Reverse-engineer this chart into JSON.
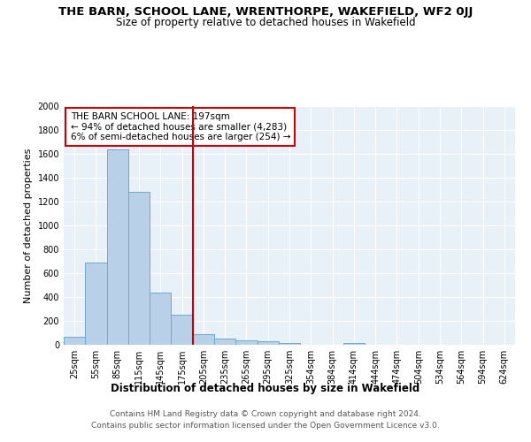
{
  "title": "THE BARN, SCHOOL LANE, WRENTHORPE, WAKEFIELD, WF2 0JJ",
  "subtitle": "Size of property relative to detached houses in Wakefield",
  "xlabel": "Distribution of detached houses by size in Wakefield",
  "ylabel": "Number of detached properties",
  "categories": [
    "25sqm",
    "55sqm",
    "85sqm",
    "115sqm",
    "145sqm",
    "175sqm",
    "205sqm",
    "235sqm",
    "265sqm",
    "295sqm",
    "325sqm",
    "354sqm",
    "384sqm",
    "414sqm",
    "444sqm",
    "474sqm",
    "504sqm",
    "534sqm",
    "564sqm",
    "594sqm",
    "624sqm"
  ],
  "values": [
    65,
    690,
    1635,
    1285,
    435,
    255,
    88,
    52,
    38,
    28,
    18,
    0,
    0,
    18,
    0,
    0,
    0,
    0,
    0,
    0,
    0
  ],
  "bar_color": "#b8d0e8",
  "bar_edge_color": "#6aaad4",
  "vline_color": "#cc0000",
  "vline_x_index": 5,
  "annotation_text": "THE BARN SCHOOL LANE: 197sqm\n← 94% of detached houses are smaller (4,283)\n6% of semi-detached houses are larger (254) →",
  "annotation_box_color": "#cc0000",
  "ylim": [
    0,
    2000
  ],
  "yticks": [
    0,
    200,
    400,
    600,
    800,
    1000,
    1200,
    1400,
    1600,
    1800,
    2000
  ],
  "footer_line1": "Contains HM Land Registry data © Crown copyright and database right 2024.",
  "footer_line2": "Contains public sector information licensed under the Open Government Licence v3.0.",
  "plot_bg_color": "#e8f0f8",
  "title_fontsize": 9.5,
  "subtitle_fontsize": 8.5,
  "xlabel_fontsize": 8.5,
  "ylabel_fontsize": 8,
  "tick_fontsize": 7,
  "annotation_fontsize": 7.5,
  "footer_fontsize": 6.5
}
